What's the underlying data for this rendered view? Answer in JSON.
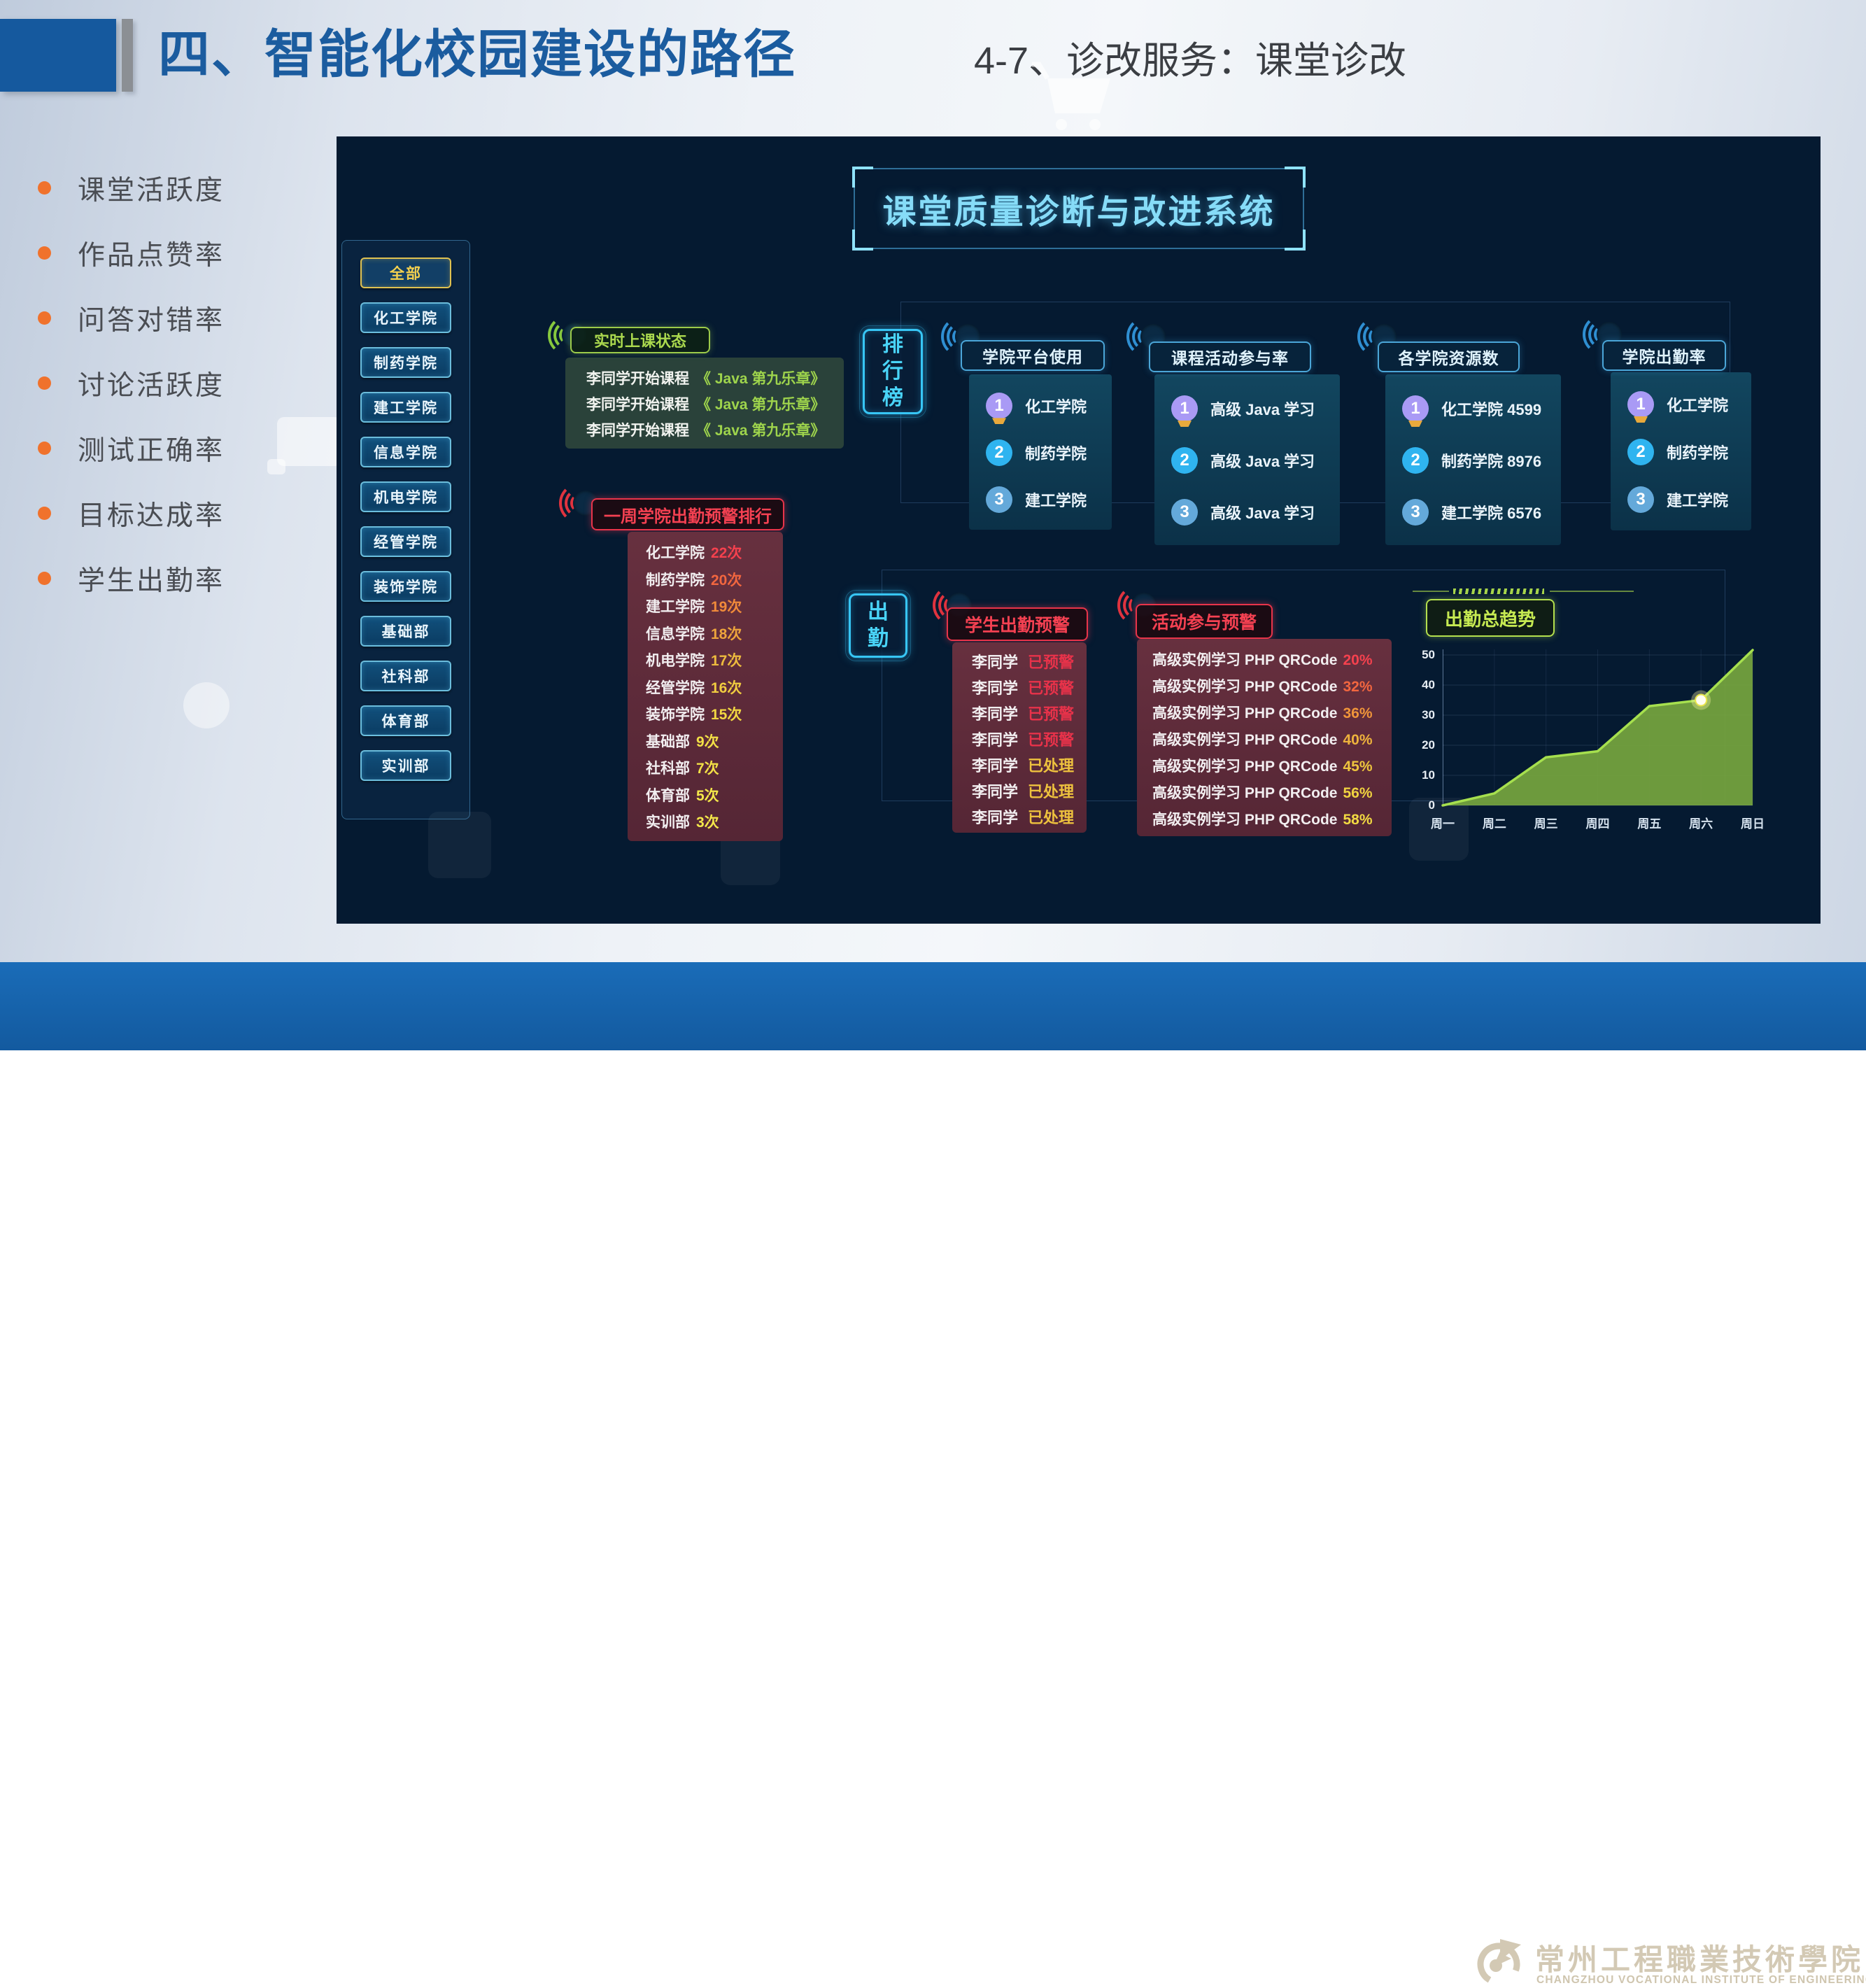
{
  "slide": {
    "title": "四、智能化校园建设的路径",
    "subtitle": "4-7、诊改服务：课堂诊改",
    "bullets": [
      "课堂活跃度",
      "作品点赞率",
      "问答对错率",
      "讨论活跃度",
      "测试正确率",
      "目标达成率",
      "学生出勤率"
    ],
    "footer": {
      "logo_cn": "常州工程職業技術學院",
      "logo_en": "CHANGZHOU VOCATIONAL INSTITUTE OF ENGINEERING"
    },
    "colors": {
      "title_blue": "#1b5c9f",
      "bullet_orange": "#f0722c",
      "footer_blue": "#1766ae",
      "dashboard_bg": "#051a31",
      "accent_cyan": "#37c6f5"
    }
  },
  "dashboard": {
    "title": "课堂质量诊断与改进系统",
    "sidebar": {
      "selected": "全部",
      "items": [
        "全部",
        "化工学院",
        "制药学院",
        "建工学院",
        "信息学院",
        "机电学院",
        "经管学院",
        "装饰学院",
        "基础部",
        "社科部",
        "体育部",
        "实训部"
      ]
    },
    "live_status": {
      "title": "实时上课状态",
      "rows": [
        {
          "text": "李同学开始课程",
          "course": "《 Java 第九乐章》"
        },
        {
          "text": "李同学开始课程",
          "course": "《 Java 第九乐章》"
        },
        {
          "text": "李同学开始课程",
          "course": "《 Java 第九乐章》"
        }
      ]
    },
    "weekly_warning": {
      "title": "一周学院出勤预警排行",
      "rows": [
        {
          "name": "化工学院",
          "count": "22次",
          "color": "#f5414e"
        },
        {
          "name": "制药学院",
          "count": "20次",
          "color": "#f2663f"
        },
        {
          "name": "建工学院",
          "count": "19次",
          "color": "#f08a3a"
        },
        {
          "name": "信息学院",
          "count": "18次",
          "color": "#eda43c"
        },
        {
          "name": "机电学院",
          "count": "17次",
          "color": "#edbb3e"
        },
        {
          "name": "经管学院",
          "count": "16次",
          "color": "#f0cc40"
        },
        {
          "name": "装饰学院",
          "count": "15次",
          "color": "#f2d742"
        },
        {
          "name": "基础部",
          "count": "9次",
          "color": "#f2e046"
        },
        {
          "name": "社科部",
          "count": "7次",
          "color": "#f2e046"
        },
        {
          "name": "体育部",
          "count": "5次",
          "color": "#f4e84a"
        },
        {
          "name": "实训部",
          "count": "3次",
          "color": "#f4e84a"
        }
      ]
    },
    "ranking": {
      "label": "排行榜",
      "medal_colors": [
        "#a99af5",
        "#2fb4f0",
        "#64a9da"
      ],
      "cards": [
        {
          "title": "学院平台使用",
          "rows": [
            "化工学院",
            "制药学院",
            "建工学院"
          ]
        },
        {
          "title": "课程活动参与率",
          "rows": [
            "高级 Java 学习",
            "高级 Java 学习",
            "高级 Java 学习"
          ]
        },
        {
          "title": "各学院资源数",
          "rows": [
            "化工学院 4599",
            "制药学院 8976",
            "建工学院 6576"
          ]
        },
        {
          "title": "学院出勤率",
          "rows": [
            "化工学院",
            "制药学院",
            "建工学院"
          ]
        }
      ]
    },
    "attendance": {
      "label": "出勤",
      "student_warning": {
        "title": "学生出勤预警",
        "rows": [
          {
            "name": "李同学",
            "status": "已预警",
            "color": "#e8324a"
          },
          {
            "name": "李同学",
            "status": "已预警",
            "color": "#e8324a"
          },
          {
            "name": "李同学",
            "status": "已预警",
            "color": "#e8324a"
          },
          {
            "name": "李同学",
            "status": "已预警",
            "color": "#e8324a"
          },
          {
            "name": "李同学",
            "status": "已处理",
            "color": "#eec23e"
          },
          {
            "name": "李同学",
            "status": "已处理",
            "color": "#eec23e"
          },
          {
            "name": "李同学",
            "status": "已处理",
            "color": "#eec23e"
          }
        ]
      },
      "activity_warning": {
        "title": "活动参与预警",
        "rows": [
          {
            "name": "高级实例学习 PHP QRCode",
            "value": "20%",
            "color": "#f5414e"
          },
          {
            "name": "高级实例学习 PHP QRCode",
            "value": "32%",
            "color": "#f2663f"
          },
          {
            "name": "高级实例学习 PHP QRCode",
            "value": "36%",
            "color": "#f0953a"
          },
          {
            "name": "高级实例学习 PHP QRCode",
            "value": "40%",
            "color": "#eeb33c"
          },
          {
            "name": "高级实例学习 PHP QRCode",
            "value": "45%",
            "color": "#eec53e"
          },
          {
            "name": "高级实例学习 PHP QRCode",
            "value": "56%",
            "color": "#f0d340"
          },
          {
            "name": "高级实例学习 PHP QRCode",
            "value": "58%",
            "color": "#f2da42"
          }
        ]
      }
    }
  },
  "chart_data": {
    "type": "area",
    "title": "出勤总趋势",
    "categories": [
      "周一",
      "周二",
      "周三",
      "周四",
      "周五",
      "周六",
      "周日"
    ],
    "values": [
      0,
      4,
      16,
      18,
      33,
      35,
      52
    ],
    "xlabel": "",
    "ylabel": "",
    "ylim": [
      0,
      50
    ],
    "yticks": [
      0,
      10,
      20,
      30,
      40,
      50
    ],
    "grid": true,
    "legend_position": "none",
    "highlight_index": 5,
    "line_color": "#a6e04e",
    "fill_color": "#76a53e"
  }
}
